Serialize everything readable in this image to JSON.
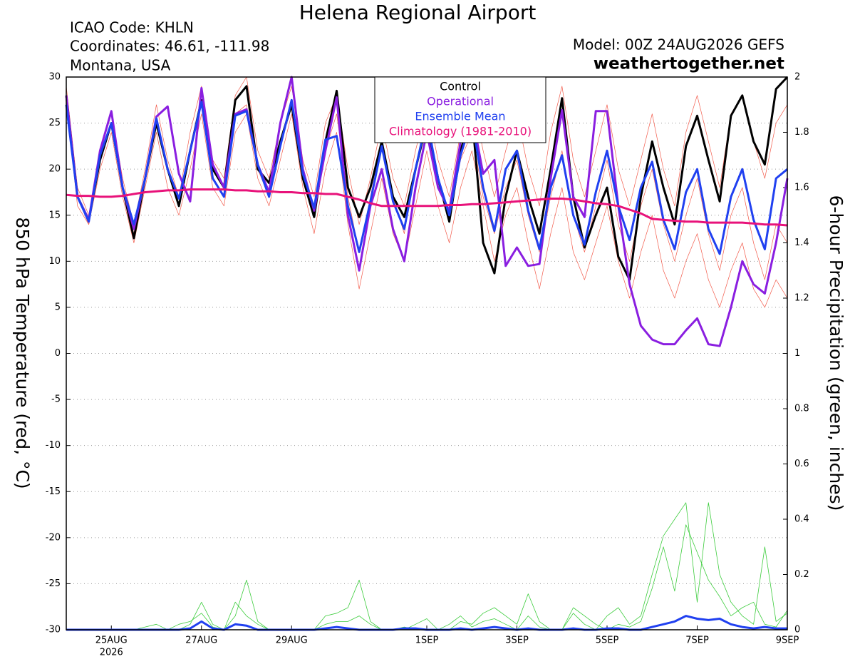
{
  "chart_data": {
    "type": "line",
    "title": "Helena Regional Airport",
    "info_left": [
      "ICAO Code: KHLN",
      "Coordinates: 46.61, -111.98",
      "Montana, USA"
    ],
    "info_right": "Model: 00Z 24AUG2026 GEFS",
    "site": "weathertogether.net",
    "site_color": "#1aa0e8",
    "ylabel": "850 hPa Temperature (red, °C)",
    "y2label": "6-hour Precipitation (green, inches)",
    "year_label": "2026",
    "categories": [
      null,
      null,
      null,
      null,
      "25AUG",
      null,
      null,
      null,
      null,
      null,
      null,
      null,
      "27AUG",
      null,
      null,
      null,
      null,
      null,
      null,
      null,
      "29AUG",
      null,
      null,
      null,
      null,
      null,
      null,
      null,
      null,
      null,
      null,
      null,
      "1SEP",
      null,
      null,
      null,
      null,
      null,
      null,
      null,
      "3SEP",
      null,
      null,
      null,
      null,
      null,
      null,
      null,
      "5SEP",
      null,
      null,
      null,
      null,
      null,
      null,
      null,
      "7SEP",
      null,
      null,
      null,
      null,
      null,
      null,
      null,
      "9SEP"
    ],
    "ylim": [
      -30,
      30
    ],
    "yticks": [
      -30,
      -25,
      -20,
      -15,
      -10,
      -5,
      0,
      5,
      10,
      15,
      20,
      25,
      30
    ],
    "y2lim": [
      0,
      2
    ],
    "y2ticks": [
      0,
      0.2,
      0.4,
      0.6,
      0.8,
      1,
      1.2,
      1.4,
      1.6,
      1.8,
      2
    ],
    "grid": true,
    "legend": "top-center",
    "members": [
      {
        "color": "#f25a4a",
        "values": [
          29,
          18,
          15,
          22,
          26,
          19,
          14,
          20,
          27,
          21,
          17,
          24,
          29,
          21,
          19,
          28,
          30,
          22,
          19,
          25,
          29,
          21,
          17,
          25,
          28,
          20,
          14,
          19,
          25,
          19,
          16,
          22,
          27,
          21,
          17,
          24,
          28,
          22,
          17,
          22,
          26,
          20,
          16,
          24,
          29,
          21,
          17,
          22,
          27,
          20,
          16,
          21,
          26,
          20,
          16,
          24,
          28,
          23,
          18,
          26,
          28,
          23,
          19,
          25,
          27
        ]
      },
      {
        "color": "#f25a4a",
        "values": [
          27,
          16,
          14,
          20,
          24,
          17,
          12,
          18,
          24,
          18,
          15,
          20,
          26,
          18,
          16,
          24,
          26,
          19,
          16,
          21,
          26,
          18,
          13,
          20,
          24,
          14,
          7,
          13,
          19,
          13,
          10,
          16,
          22,
          16,
          12,
          18,
          22,
          16,
          10,
          15,
          18,
          12,
          7,
          13,
          18,
          11,
          8,
          12,
          16,
          10,
          6,
          11,
          15,
          9,
          6,
          10,
          13,
          8,
          5,
          9,
          12,
          7,
          5,
          8,
          6
        ]
      },
      {
        "color": "#f25a4a",
        "values": [
          28,
          17,
          14,
          21,
          25,
          18,
          13,
          19,
          25,
          20,
          16,
          22,
          27,
          19,
          17,
          26,
          27,
          20,
          17,
          23,
          27,
          19,
          15,
          22,
          26,
          17,
          11,
          17,
          23,
          17,
          13,
          20,
          25,
          19,
          15,
          21,
          24,
          17,
          13,
          18,
          21,
          15,
          11,
          17,
          22,
          15,
          11,
          16,
          21,
          14,
          10,
          16,
          20,
          14,
          10,
          15,
          19,
          13,
          9,
          15,
          18,
          12,
          8,
          14,
          12
        ]
      }
    ],
    "precip_members": [
      {
        "color": "#3ccc3c",
        "axis": "y2",
        "values": [
          0,
          0,
          0,
          0,
          0,
          0,
          0,
          0,
          0,
          0,
          0,
          0.02,
          0.1,
          0.02,
          0,
          0.05,
          0.18,
          0.03,
          0,
          0,
          0,
          0,
          0,
          0.05,
          0.06,
          0.08,
          0.18,
          0.03,
          0,
          0,
          0,
          0.02,
          0.04,
          0,
          0,
          0.03,
          0.02,
          0.06,
          0.08,
          0.05,
          0.02,
          0.13,
          0.03,
          0,
          0,
          0.06,
          0.02,
          0,
          0.05,
          0.08,
          0.02,
          0.05,
          0.2,
          0.34,
          0.4,
          0.46,
          0.1,
          0.46,
          0.2,
          0.1,
          0.05,
          0.02,
          0.3,
          0.03,
          0.06
        ]
      },
      {
        "color": "#3ccc3c",
        "axis": "y2",
        "values": [
          0,
          0,
          0,
          0,
          0,
          0,
          0,
          0.01,
          0.02,
          0,
          0.02,
          0.03,
          0.06,
          0.01,
          0,
          0.1,
          0.05,
          0.02,
          0,
          0,
          0,
          0,
          0,
          0.02,
          0.03,
          0.03,
          0.05,
          0.02,
          0,
          0,
          0.01,
          0,
          0,
          0,
          0.02,
          0.05,
          0.01,
          0.03,
          0.04,
          0.02,
          0,
          0.05,
          0.01,
          0,
          0,
          0.08,
          0.05,
          0.02,
          0,
          0.02,
          0.01,
          0.03,
          0.15,
          0.3,
          0.14,
          0.38,
          0.28,
          0.18,
          0.12,
          0.05,
          0.08,
          0.1,
          0.02,
          0.01,
          0.07
        ]
      }
    ],
    "precip_series": [
      {
        "color": "#2040f0",
        "axis": "y2",
        "values": [
          0,
          0,
          0,
          0,
          0,
          0,
          0,
          0,
          0,
          0,
          0,
          0.005,
          0.03,
          0.005,
          0,
          0.02,
          0.015,
          0,
          0,
          0,
          0,
          0,
          0,
          0.005,
          0.01,
          0.005,
          0,
          0,
          0,
          0,
          0.005,
          0.005,
          0,
          0,
          0,
          0.005,
          0,
          0.005,
          0.01,
          0.005,
          0,
          0.005,
          0,
          0,
          0,
          0.005,
          0,
          0,
          0.005,
          0.005,
          0,
          0,
          0.01,
          0.02,
          0.03,
          0.05,
          0.04,
          0.035,
          0.04,
          0.02,
          0.01,
          0.005,
          0.01,
          0.005,
          0.005
        ]
      }
    ],
    "series": [
      {
        "name": "Control",
        "color": "#000000",
        "values": [
          28,
          17,
          14.5,
          21,
          25,
          18,
          12.5,
          19,
          25,
          20,
          16,
          22,
          27.5,
          20,
          18,
          27.5,
          29,
          20,
          18.5,
          23,
          27,
          19,
          14.8,
          23,
          28.5,
          18,
          14.8,
          18,
          23,
          17,
          14.8,
          20,
          25,
          19,
          14.3,
          22,
          26,
          12,
          8.7,
          17,
          22,
          17,
          13,
          20,
          27.7,
          17,
          11.5,
          15,
          18,
          10.5,
          8,
          17,
          23,
          18,
          14,
          22.5,
          25.8,
          21,
          16.5,
          25.8,
          28,
          23,
          20.5,
          28.7,
          30
        ]
      },
      {
        "name": "Operational",
        "color": "#8a1ee0",
        "values": [
          28,
          17,
          14.5,
          22,
          26.3,
          18,
          13.5,
          19,
          25.7,
          26.8,
          19.5,
          16.5,
          28.8,
          20.5,
          18,
          26,
          26.5,
          20.5,
          17.5,
          25,
          30,
          20,
          15.5,
          22,
          27.8,
          15,
          9,
          16,
          20,
          13.5,
          10,
          18,
          24,
          18,
          15.5,
          23,
          26,
          19.5,
          21,
          9.5,
          11.5,
          9.5,
          9.7,
          19,
          26.4,
          17,
          14.8,
          26.3,
          26.3,
          16,
          7.5,
          3,
          1.5,
          1,
          1,
          2.5,
          3.8,
          1,
          0.8,
          5,
          10,
          7.5,
          6.5,
          12,
          19
        ]
      },
      {
        "name": "Ensemble Mean",
        "color": "#2040f0",
        "values": [
          27,
          17,
          14.3,
          21.5,
          25,
          18,
          14,
          19,
          25.5,
          20,
          16.8,
          22,
          27.3,
          19,
          17,
          25.8,
          26.3,
          20.5,
          17,
          22.5,
          27.5,
          19.5,
          15.8,
          23.2,
          23.6,
          16,
          11,
          16.5,
          22.5,
          16.5,
          13.5,
          20,
          25.5,
          19,
          15,
          21.5,
          25.5,
          18,
          13.3,
          20,
          22,
          15.5,
          11.3,
          18,
          21.5,
          15,
          11.8,
          17.5,
          22,
          16,
          12.3,
          18,
          20.8,
          14.5,
          11.3,
          17.5,
          20,
          13.5,
          10.8,
          17,
          20,
          14.5,
          11.3,
          19,
          20
        ]
      },
      {
        "name": "Climatology (1981-2010)",
        "color": "#e8127a",
        "values": [
          17.2,
          17.1,
          17.1,
          17,
          17,
          17.1,
          17.3,
          17.5,
          17.6,
          17.7,
          17.7,
          17.8,
          17.8,
          17.8,
          17.8,
          17.7,
          17.7,
          17.6,
          17.6,
          17.5,
          17.5,
          17.4,
          17.4,
          17.3,
          17.3,
          17,
          16.7,
          16.3,
          16,
          16,
          16,
          16,
          16,
          16,
          16.1,
          16.1,
          16.2,
          16.2,
          16.3,
          16.4,
          16.5,
          16.6,
          16.7,
          16.8,
          16.8,
          16.7,
          16.5,
          16.3,
          16.2,
          16,
          15.6,
          15.2,
          14.6,
          14.5,
          14.4,
          14.3,
          14.3,
          14.2,
          14.2,
          14.2,
          14.2,
          14.1,
          14,
          14,
          13.9
        ]
      }
    ]
  }
}
